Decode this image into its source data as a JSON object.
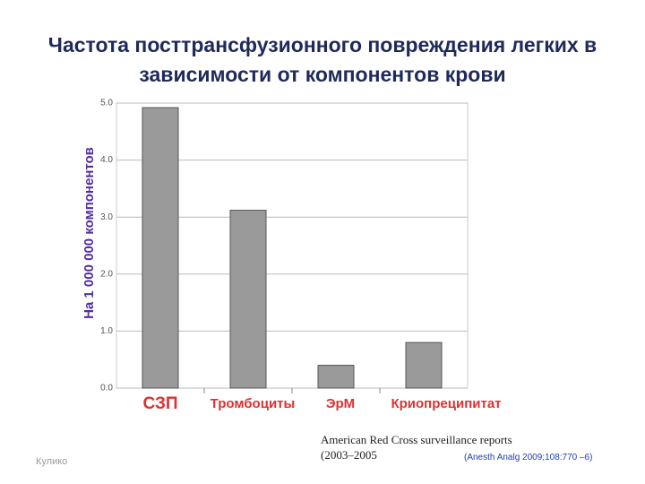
{
  "chart_data": {
    "type": "bar",
    "title": "Частота посттрансфузионного повреждения легких в зависимости от компонентов крови",
    "y_label": "На 1 000 000 компонентов",
    "categories": [
      "СЗП",
      "Тромбоциты",
      "ЭрМ",
      "Криопреципитат"
    ],
    "values": [
      4.92,
      3.12,
      0.4,
      0.8
    ],
    "color": "#9a9a9a",
    "ylim": [
      0,
      5
    ],
    "yticks": [
      {
        "value": 0,
        "label": "0.0"
      },
      {
        "value": 1,
        "label": "1.0"
      },
      {
        "value": 2,
        "label": "2.0"
      },
      {
        "value": 3,
        "label": "3.0"
      },
      {
        "value": 4,
        "label": "4.0"
      },
      {
        "value": 5,
        "label": "5.0"
      }
    ],
    "grid": true,
    "source": "American Red Cross surveillance reports (2003–2005",
    "citation": "(Anesth Analg 2009;108:770 –6)",
    "footer": "Кулико"
  }
}
